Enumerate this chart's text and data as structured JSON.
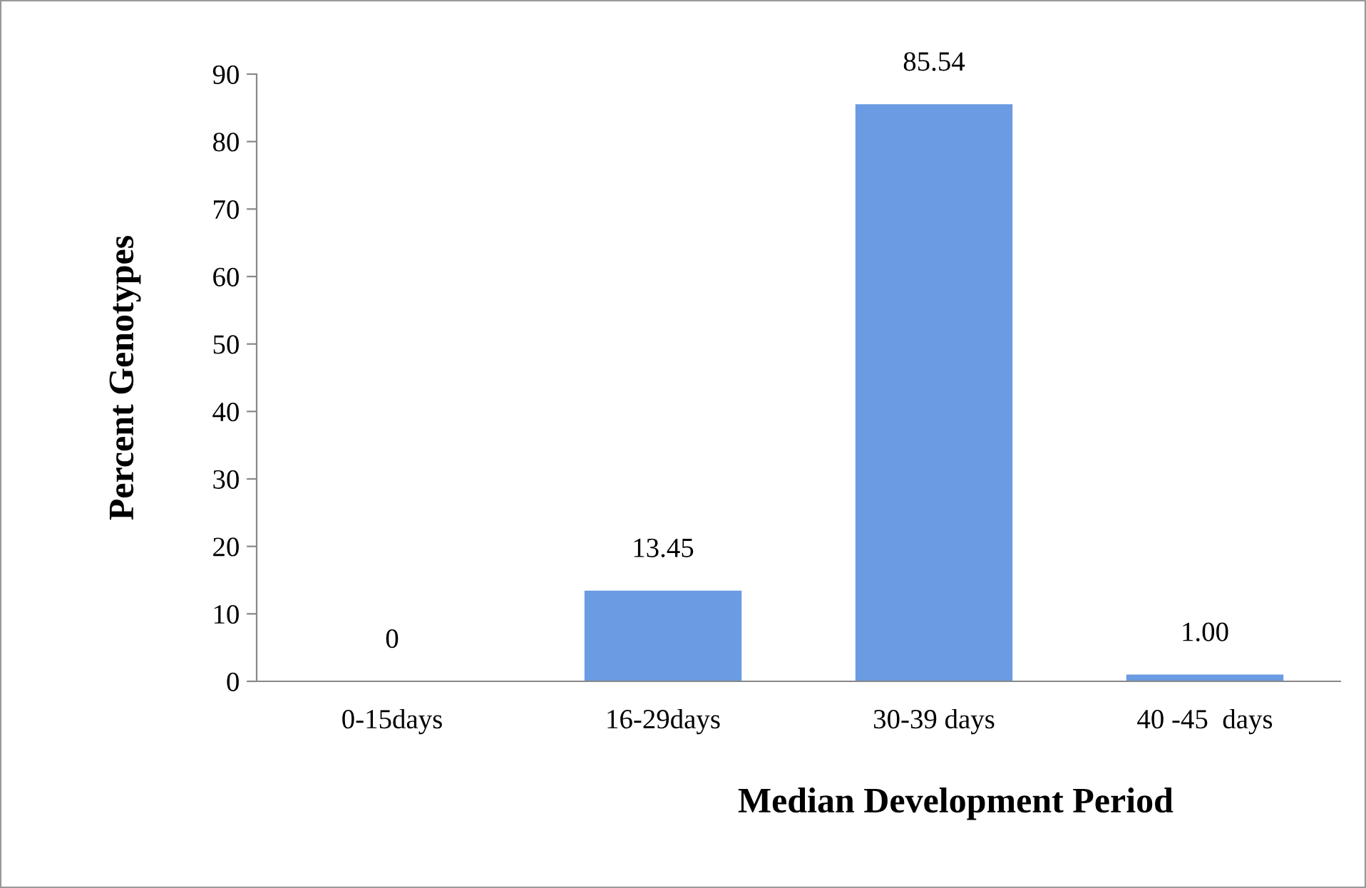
{
  "chart_data": {
    "type": "bar",
    "xlabel": "Median Development Period",
    "ylabel": "Percent Genotypes",
    "categories": [
      "0-15days",
      "16-29days",
      "30-39 days",
      "40 -45  days"
    ],
    "values": [
      0,
      13.45,
      85.54,
      1.0
    ],
    "value_labels": [
      "0",
      "13.45",
      "85.54",
      "1.00"
    ],
    "color": "#6a9be3",
    "ylim": [
      0,
      90
    ],
    "yticks": [
      0,
      10,
      20,
      30,
      40,
      50,
      60,
      70,
      80,
      90
    ],
    "grid": false,
    "legend": false
  }
}
